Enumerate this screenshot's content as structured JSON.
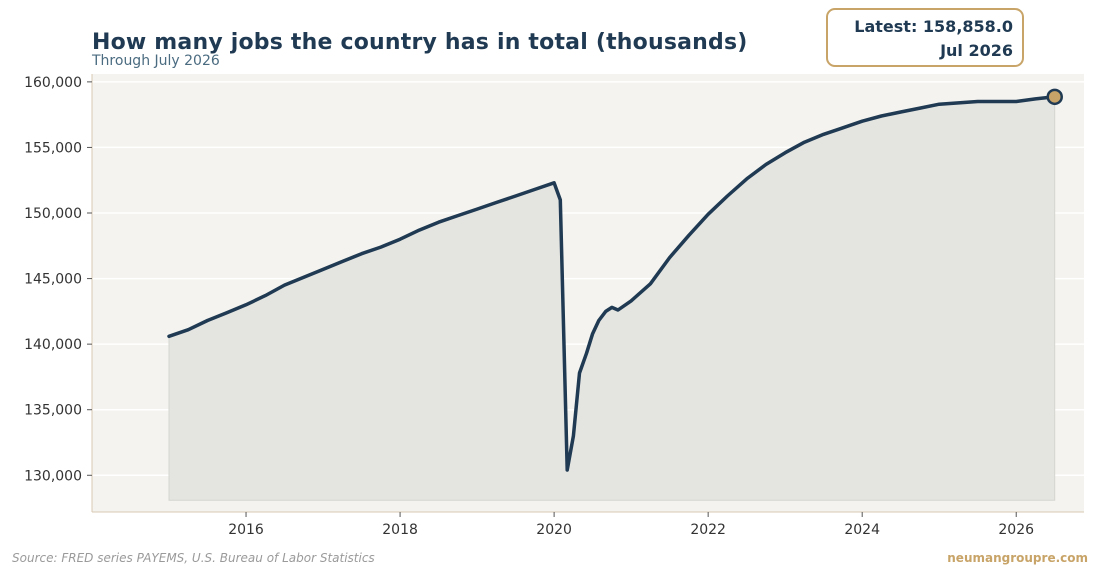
{
  "header": {
    "title": "How many jobs the country has in total (thousands)",
    "subtitle": "Through July 2026"
  },
  "latest": {
    "value_text": "Latest: 158,858.0",
    "date_text": "Jul 2026"
  },
  "footer": {
    "source": "Source: FRED series PAYEMS, U.S. Bureau of Labor Statistics",
    "brand": "neumangroupre.com"
  },
  "colors": {
    "line": "#1f3a52",
    "fill": "#e4e4e1",
    "plot_background": "#f4f3ef",
    "marker": "#c8a468",
    "accent": "#c8a468",
    "axis": "#d9c9b0",
    "grid": "#ffffff"
  },
  "chart_data": {
    "type": "area",
    "title": "How many jobs the country has in total (thousands)",
    "subtitle": "Through July 2026",
    "xlabel": "",
    "ylabel": "",
    "xlim": [
      2014.0,
      2026.88
    ],
    "ylim": [
      127200,
      160600
    ],
    "fill_floor": 128100,
    "grid": true,
    "y_ticks": [
      130000,
      135000,
      140000,
      145000,
      150000,
      155000,
      160000
    ],
    "y_tick_labels": [
      "130,000",
      "135,000",
      "140,000",
      "145,000",
      "150,000",
      "155,000",
      "160,000"
    ],
    "x_ticks": [
      2016,
      2018,
      2020,
      2022,
      2024,
      2026
    ],
    "x_tick_labels": [
      "2016",
      "2018",
      "2020",
      "2022",
      "2024",
      "2026"
    ],
    "series": [
      {
        "x": [
          2015.0,
          2015.25,
          2015.5,
          2015.75,
          2016.0,
          2016.25,
          2016.5,
          2016.75,
          2017.0,
          2017.25,
          2017.5,
          2017.75,
          2018.0,
          2018.25,
          2018.5,
          2018.75,
          2019.0,
          2019.25,
          2019.5,
          2019.75,
          2020.0,
          2020.08,
          2020.17,
          2020.25,
          2020.33,
          2020.42,
          2020.5,
          2020.58,
          2020.67,
          2020.75,
          2020.83,
          2021.0,
          2021.25,
          2021.5,
          2021.75,
          2022.0,
          2022.25,
          2022.5,
          2022.75,
          2023.0,
          2023.25,
          2023.5,
          2023.75,
          2024.0,
          2024.25,
          2024.5,
          2024.75,
          2025.0,
          2025.25,
          2025.5,
          2025.75,
          2026.0,
          2026.25,
          2026.5
        ],
        "values": [
          140600,
          141100,
          141800,
          142400,
          143000,
          143700,
          144500,
          145100,
          145700,
          146300,
          146900,
          147400,
          148000,
          148700,
          149300,
          149800,
          150300,
          150800,
          151300,
          151800,
          152300,
          151000,
          130400,
          133000,
          137800,
          139300,
          140800,
          141800,
          142500,
          142800,
          142600,
          143300,
          144600,
          146600,
          148300,
          149900,
          151300,
          152600,
          153700,
          154600,
          155400,
          156000,
          156500,
          157000,
          157400,
          157700,
          158000,
          158300,
          158400,
          158500,
          158500,
          158500,
          158700,
          158858
        ]
      }
    ],
    "latest_point": {
      "x": 2026.5,
      "y": 158858.0,
      "label": "Jul 2026"
    }
  }
}
